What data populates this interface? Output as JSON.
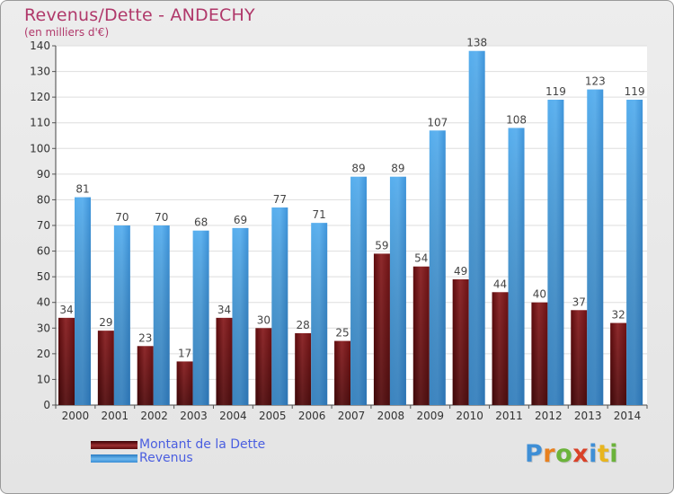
{
  "chart_data": {
    "type": "bar",
    "title": "Revenus/Dette - ANDECHY",
    "subtitle": "(en milliers d'€)",
    "categories": [
      "2000",
      "2001",
      "2002",
      "2003",
      "2004",
      "2005",
      "2006",
      "2007",
      "2008",
      "2009",
      "2010",
      "2011",
      "2012",
      "2013",
      "2014"
    ],
    "series": [
      {
        "name": "Montant de la Dette",
        "color": "#7a1416",
        "values": [
          34,
          29,
          23,
          17,
          34,
          30,
          28,
          25,
          59,
          54,
          49,
          44,
          40,
          37,
          32
        ]
      },
      {
        "name": "Revenus",
        "color": "#4a9fe0",
        "values": [
          81,
          70,
          70,
          68,
          69,
          77,
          71,
          89,
          89,
          107,
          138,
          108,
          119,
          123,
          119
        ]
      }
    ],
    "ylim": [
      0,
      140
    ],
    "yticks": [
      0,
      10,
      20,
      30,
      40,
      50,
      60,
      70,
      80,
      90,
      100,
      110,
      120,
      130,
      140
    ],
    "grid": true,
    "legend_position": "bottom-left"
  },
  "logo": {
    "text": "Proxiti",
    "letters": [
      {
        "ch": "P",
        "color": "#3f8fd6"
      },
      {
        "ch": "r",
        "color": "#e8801e"
      },
      {
        "ch": "o",
        "color": "#6bb33a"
      },
      {
        "ch": "x",
        "color": "#d94128"
      },
      {
        "ch": "i",
        "color": "#3f8fd6"
      },
      {
        "ch": "t",
        "color": "#e8b51e"
      },
      {
        "ch": "i",
        "color": "#6bb33a"
      }
    ]
  }
}
